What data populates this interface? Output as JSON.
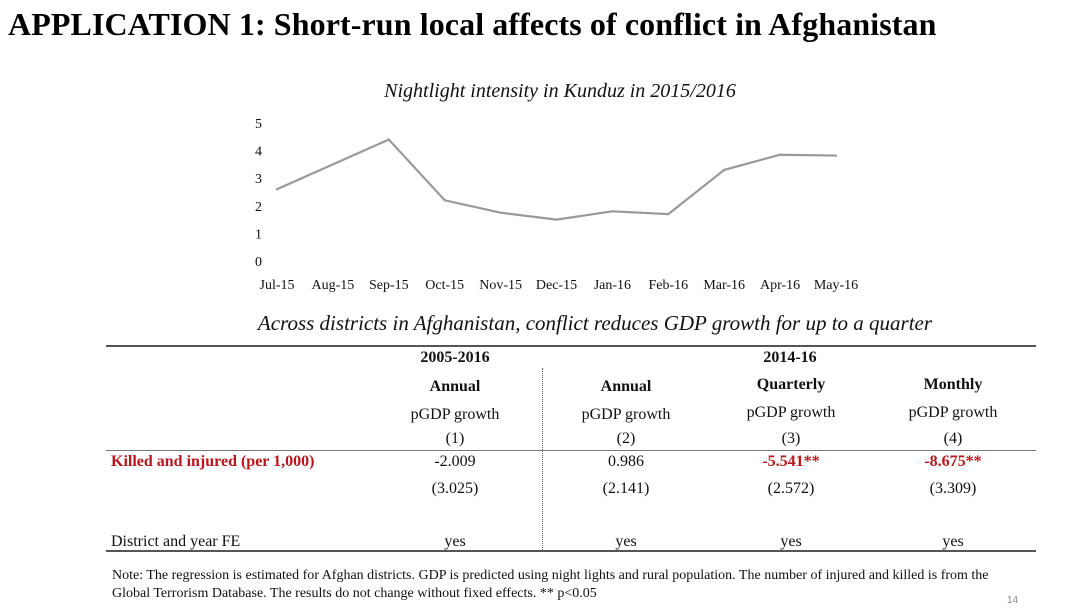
{
  "slide": {
    "title": "APPLICATION 1: Short-run local affects of conflict in Afghanistan",
    "page_number": "14"
  },
  "chart_data": {
    "type": "line",
    "title": "Nightlight intensity in Kunduz in 2015/2016",
    "categories": [
      "Jul-15",
      "Aug-15",
      "Sep-15",
      "Oct-15",
      "Nov-15",
      "Dec-15",
      "Jan-16",
      "Feb-16",
      "Mar-16",
      "Apr-16",
      "May-16"
    ],
    "values": [
      2.6,
      3.5,
      4.4,
      2.2,
      1.75,
      1.5,
      1.8,
      1.7,
      3.3,
      3.85,
      3.82
    ],
    "ylim": [
      0,
      5
    ],
    "yticks": [
      "0",
      "1",
      "2",
      "3",
      "4",
      "5"
    ],
    "line_color": "#999999",
    "grid": false
  },
  "table": {
    "subtitle": "Across districts in Afghanistan, conflict reduces GDP growth for up to a quarter",
    "period_1": "2005-2016",
    "period_2": "2014-16",
    "columns": [
      {
        "freq": "Annual",
        "dep": "pGDP growth",
        "num": "(1)",
        "coef": "-2.009",
        "se": "(3.025)",
        "fe": "yes",
        "significant": false
      },
      {
        "freq": "Annual",
        "dep": "pGDP growth",
        "num": "(2)",
        "coef": "0.986",
        "se": "(2.141)",
        "fe": "yes",
        "significant": false
      },
      {
        "freq": "Quarterly",
        "dep": "pGDP growth",
        "num": "(3)",
        "coef": "-5.541**",
        "se": "(2.572)",
        "fe": "yes",
        "significant": true
      },
      {
        "freq": "Monthly",
        "dep": "pGDP growth",
        "num": "(4)",
        "coef": "-8.675**",
        "se": "(3.309)",
        "fe": "yes",
        "significant": true
      }
    ],
    "row_killed": "Killed and injured (per 1,000)",
    "row_fe": "District and year FE",
    "highlight_color": "#b8161c"
  },
  "note": "Note: The regression is estimated for Afghan districts. GDP is predicted using night lights and rural population. The number of injured and killed is from the Global Terrorism Database. The results do not change without fixed effects. ** p<0.05"
}
